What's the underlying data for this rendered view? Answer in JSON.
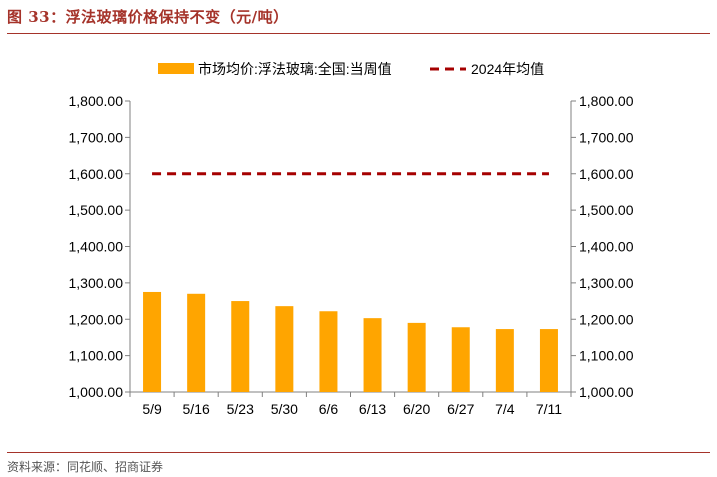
{
  "figure": {
    "title": "图 33：浮法玻璃价格保持不变（元/吨）",
    "source": "资料来源：同花顺、招商证券"
  },
  "colors": {
    "accent": "#A5332A",
    "bar": "#FFA500",
    "avg_line": "#A50000",
    "axis": "#808080"
  },
  "chart_data": {
    "type": "bar",
    "categories": [
      "5/9",
      "5/16",
      "5/23",
      "5/30",
      "6/6",
      "6/13",
      "6/20",
      "6/27",
      "7/4",
      "7/11"
    ],
    "series": [
      {
        "name": "市场均价:浮法玻璃:全国:当周值",
        "type": "bar",
        "values": [
          1275,
          1270,
          1250,
          1236,
          1222,
          1203,
          1190,
          1178,
          1173,
          1173
        ]
      },
      {
        "name": "2024年均值",
        "type": "line",
        "style": "dashed",
        "values": [
          1600,
          1600,
          1600,
          1600,
          1600,
          1600,
          1600,
          1600,
          1600,
          1600
        ]
      }
    ],
    "ylim": [
      1000,
      1800
    ],
    "yticks": [
      "1,000.00",
      "1,100.00",
      "1,200.00",
      "1,300.00",
      "1,400.00",
      "1,500.00",
      "1,600.00",
      "1,700.00",
      "1,800.00"
    ],
    "secondary_yticks": [
      "1,000.00",
      "1,100.00",
      "1,200.00",
      "1,300.00",
      "1,400.00",
      "1,500.00",
      "1,600.00",
      "1,700.00",
      "1,800.00"
    ],
    "legend_position": "top",
    "grid": false
  }
}
